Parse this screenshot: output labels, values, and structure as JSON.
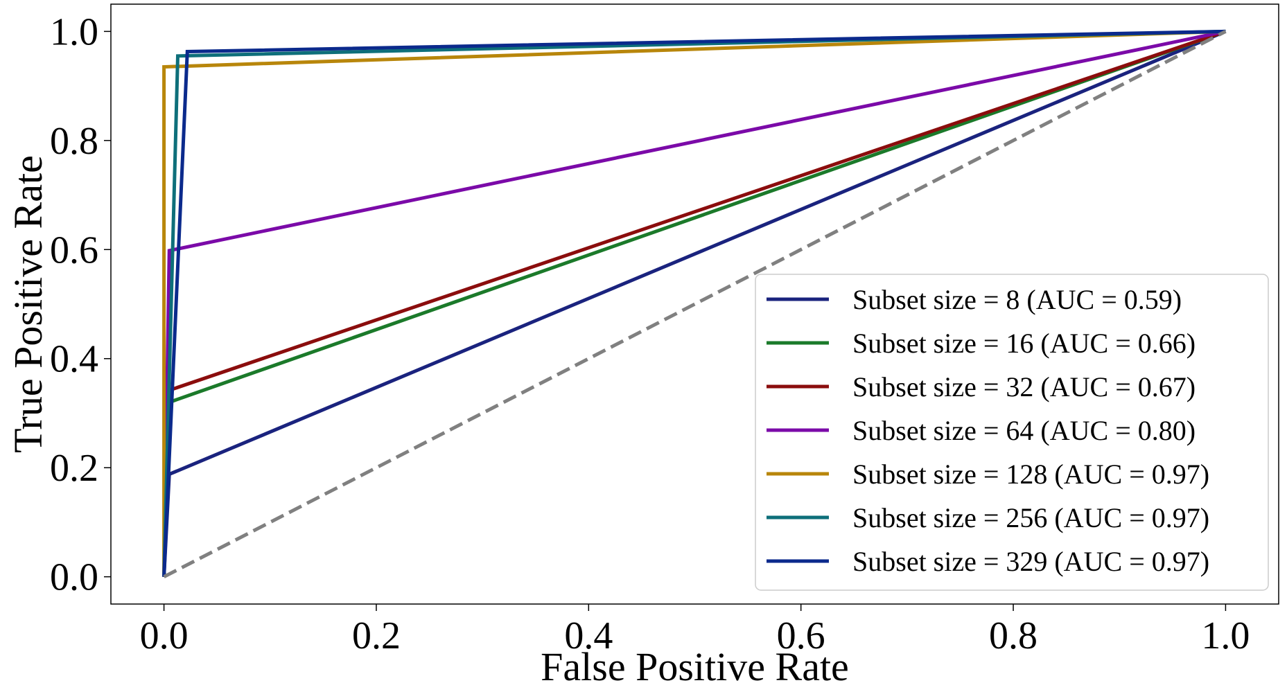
{
  "chart_data": {
    "type": "line",
    "xlabel": "False Positive Rate",
    "ylabel": "True Positive Rate",
    "xlim": [
      -0.05,
      1.05
    ],
    "ylim": [
      -0.05,
      1.05
    ],
    "xticks": [
      "0.0",
      "0.2",
      "0.4",
      "0.6",
      "0.8",
      "1.0"
    ],
    "yticks": [
      "0.0",
      "0.2",
      "0.4",
      "0.6",
      "0.8",
      "1.0"
    ],
    "grid": false,
    "legend_position": "lower-right",
    "series": [
      {
        "name": "Subset size = 8 (AUC = 0.59)",
        "color": "#1a237e",
        "x": [
          0,
          0.005,
          1
        ],
        "y": [
          0,
          0.188,
          1
        ]
      },
      {
        "name": "Subset size = 16 (AUC = 0.66)",
        "color": "#1b7a2a",
        "x": [
          0,
          0.005,
          1
        ],
        "y": [
          0,
          0.32,
          1
        ]
      },
      {
        "name": "Subset size = 32 (AUC = 0.67)",
        "color": "#8b0d0d",
        "x": [
          0,
          0.005,
          1
        ],
        "y": [
          0,
          0.342,
          1
        ]
      },
      {
        "name": "Subset size = 64 (AUC = 0.80)",
        "color": "#7b0aa8",
        "x": [
          0,
          0.005,
          1
        ],
        "y": [
          0,
          0.598,
          1
        ]
      },
      {
        "name": "Subset size = 128 (AUC = 0.97)",
        "color": "#b8860b",
        "x": [
          0,
          0,
          1
        ],
        "y": [
          0,
          0.935,
          1
        ]
      },
      {
        "name": "Subset size = 256 (AUC = 0.97)",
        "color": "#0e6f7a",
        "x": [
          0,
          0.013,
          1
        ],
        "y": [
          0,
          0.955,
          1
        ]
      },
      {
        "name": "Subset size = 329 (AUC = 0.97)",
        "color": "#0b2a8c",
        "x": [
          0,
          0.022,
          1
        ],
        "y": [
          0,
          0.963,
          1
        ]
      }
    ],
    "reference_line": {
      "x": [
        0,
        1
      ],
      "y": [
        0,
        1
      ],
      "color": "#808080",
      "style": "dashed"
    }
  }
}
